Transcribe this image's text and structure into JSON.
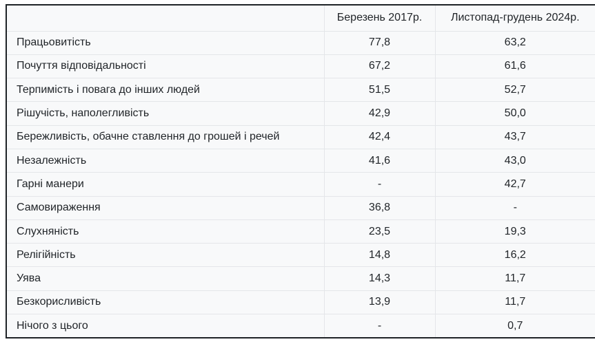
{
  "colors": {
    "outer_border": "#1d2125",
    "table_background": "#f8f9fa",
    "separator": "#e4e6e9",
    "text": "#212529",
    "page_background": "#ffffff"
  },
  "table": {
    "header": {
      "col1": "",
      "col2": "Березень 2017р.",
      "col3": "Листопад-грудень 2024р."
    },
    "rows": [
      {
        "label": "Працьовитість",
        "v2017": "77,8",
        "v2024": "63,2"
      },
      {
        "label": "Почуття відповідальності",
        "v2017": "67,2",
        "v2024": "61,6"
      },
      {
        "label": "Терпимість і повага до інших людей",
        "v2017": "51,5",
        "v2024": "52,7"
      },
      {
        "label": "Рішучість, наполегливість",
        "v2017": "42,9",
        "v2024": "50,0"
      },
      {
        "label": "Бережливість, обачне ставлення до грошей і речей",
        "v2017": "42,4",
        "v2024": "43,7"
      },
      {
        "label": "Незалежність",
        "v2017": "41,6",
        "v2024": "43,0"
      },
      {
        "label": "Гарні манери",
        "v2017": "-",
        "v2024": "42,7"
      },
      {
        "label": "Самовираження",
        "v2017": "36,8",
        "v2024": "-"
      },
      {
        "label": "Слухняність",
        "v2017": "23,5",
        "v2024": "19,3"
      },
      {
        "label": "Релігійність",
        "v2017": "14,8",
        "v2024": "16,2"
      },
      {
        "label": "Уява",
        "v2017": "14,3",
        "v2024": "11,7"
      },
      {
        "label": "Безкорисливість",
        "v2017": "13,9",
        "v2024": "11,7"
      },
      {
        "label": "Нічого з цього",
        "v2017": "-",
        "v2024": "0,7"
      }
    ]
  },
  "chart_data": {
    "type": "table",
    "title": "",
    "columns": [
      "",
      "Березень 2017р.",
      "Листопад-грудень 2024р."
    ],
    "categories": [
      "Працьовитість",
      "Почуття відповідальності",
      "Терпимість і повага до інших людей",
      "Рішучість, наполегливість",
      "Бережливість, обачне ставлення до грошей і речей",
      "Незалежність",
      "Гарні манери",
      "Самовираження",
      "Слухняність",
      "Релігійність",
      "Уява",
      "Безкорисливість",
      "Нічого з цього"
    ],
    "series": [
      {
        "name": "Березень 2017р.",
        "values": [
          77.8,
          67.2,
          51.5,
          42.9,
          42.4,
          41.6,
          null,
          36.8,
          23.5,
          14.8,
          14.3,
          13.9,
          null
        ]
      },
      {
        "name": "Листопад-грудень 2024р.",
        "values": [
          63.2,
          61.6,
          52.7,
          50.0,
          43.7,
          43.0,
          42.7,
          null,
          19.3,
          16.2,
          11.7,
          11.7,
          0.7
        ]
      }
    ]
  }
}
